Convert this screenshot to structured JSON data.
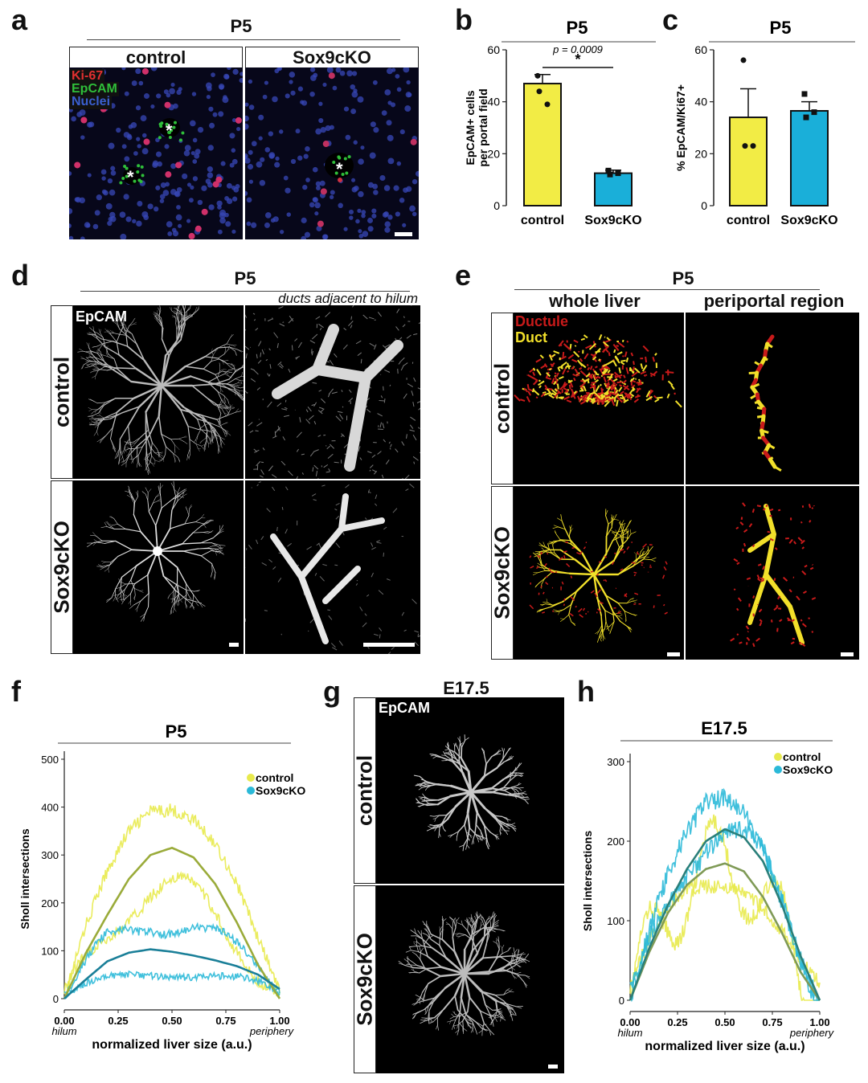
{
  "panels": {
    "a": {
      "label": "a",
      "title": "P5",
      "headers": [
        "control",
        "Sox9cKO"
      ],
      "channels": [
        "Ki-67",
        "EpCAM",
        "Nuclei"
      ],
      "marker": "*",
      "colors": {
        "ki67": "#e03030",
        "epcam": "#2fbf3a",
        "nuclei": "#3a5fd0"
      }
    },
    "b": {
      "label": "b",
      "title": "P5"
    },
    "c": {
      "label": "c",
      "title": "P5"
    },
    "d": {
      "label": "d",
      "title": "P5",
      "subtitle": "ducts adjacent to hilum",
      "channel": "EpCAM",
      "rows": [
        "control",
        "Sox9cKO"
      ]
    },
    "e": {
      "label": "e",
      "title": "P5",
      "cols": [
        "whole liver",
        "periportal region"
      ],
      "legend": [
        "Ductule",
        "Duct"
      ],
      "rows": [
        "control",
        "Sox9cKO"
      ],
      "colors": {
        "ductule": "#c81a1a",
        "duct": "#f2e02a"
      }
    },
    "f": {
      "label": "f",
      "title": "P5"
    },
    "g": {
      "label": "g",
      "title": "E17.5",
      "channel": "EpCAM",
      "rows": [
        "control",
        "Sox9cKO"
      ]
    },
    "h": {
      "label": "h",
      "title": "E17.5"
    }
  },
  "chart_data": [
    {
      "id": "b",
      "type": "bar",
      "title": "P5",
      "ylabel": "EpCAM+ cells per portal field",
      "categories": [
        "control",
        "Sox9cKO"
      ],
      "values": [
        47,
        12.5
      ],
      "errors": [
        3.5,
        1.2
      ],
      "points": [
        [
          50,
          44,
          39
        ],
        [
          13.5,
          12,
          12.5
        ]
      ],
      "ylim": [
        0,
        60
      ],
      "yticks": [
        0,
        20,
        40,
        60
      ],
      "annotation": {
        "p": "p = 0.0009",
        "sig": "*"
      },
      "colors": [
        "#f2ec45",
        "#1aafd9"
      ]
    },
    {
      "id": "c",
      "type": "bar",
      "title": "P5",
      "ylabel": "% EpCAM/Ki67+",
      "categories": [
        "control",
        "Sox9cKO"
      ],
      "values": [
        34,
        36.5
      ],
      "errors": [
        11,
        3.5
      ],
      "points": [
        [
          56,
          23,
          23
        ],
        [
          43,
          34,
          36
        ]
      ],
      "ylim": [
        0,
        60
      ],
      "yticks": [
        0,
        20,
        40,
        60
      ],
      "colors": [
        "#f2ec45",
        "#1aafd9"
      ]
    },
    {
      "id": "f",
      "type": "line",
      "title": "P5",
      "xlabel": "normalized liver size (a.u.)",
      "ylabel": "Sholl intersections",
      "xlim": [
        0,
        1
      ],
      "ylim": [
        0,
        500
      ],
      "xticks": [
        "0.00",
        "0.25",
        "0.50",
        "0.75",
        "1.00"
      ],
      "yticks": [
        0,
        100,
        200,
        300,
        400,
        500
      ],
      "x_endpoints": [
        "hilum",
        "periphery"
      ],
      "legend": [
        "control",
        "Sox9cKO"
      ],
      "series": [
        {
          "name": "control",
          "fit": {
            "x": [
              0,
              0.1,
              0.2,
              0.3,
              0.4,
              0.5,
              0.6,
              0.7,
              0.8,
              0.9,
              1.0
            ],
            "y": [
              0,
              95,
              175,
              250,
              300,
              315,
              295,
              240,
              160,
              70,
              0
            ]
          },
          "color": "#e8ea4d",
          "fitcolor": "#9aab3a"
        },
        {
          "name": "Sox9cKO",
          "fit": {
            "x": [
              0,
              0.1,
              0.2,
              0.3,
              0.4,
              0.5,
              0.6,
              0.7,
              0.8,
              0.9,
              1.0
            ],
            "y": [
              0,
              40,
              78,
              96,
              103,
              98,
              90,
              80,
              68,
              50,
              20
            ]
          },
          "color": "#2bb9d8",
          "fitcolor": "#1a7f98"
        }
      ]
    },
    {
      "id": "h",
      "type": "line",
      "title": "E17.5",
      "xlabel": "normalized liver size (a.u.)",
      "ylabel": "Sholl intersections",
      "xlim": [
        0,
        1
      ],
      "ylim": [
        0,
        300
      ],
      "xticks": [
        "0.00",
        "0.25",
        "0.50",
        "0.75",
        "1.00"
      ],
      "yticks": [
        0,
        100,
        200,
        300
      ],
      "x_endpoints": [
        "hilum",
        "periphery"
      ],
      "legend": [
        "control",
        "Sox9cKO"
      ],
      "series": [
        {
          "name": "control",
          "fit": {
            "x": [
              0,
              0.1,
              0.2,
              0.3,
              0.4,
              0.5,
              0.6,
              0.7,
              0.8,
              0.9,
              1.0
            ],
            "y": [
              0,
              60,
              110,
              145,
              165,
              172,
              162,
              130,
              85,
              35,
              0
            ]
          },
          "color": "#e8ea4d",
          "fitcolor": "#7f9a56"
        },
        {
          "name": "Sox9cKO",
          "fit": {
            "x": [
              0,
              0.1,
              0.2,
              0.3,
              0.4,
              0.5,
              0.6,
              0.7,
              0.8,
              0.9,
              1.0
            ],
            "y": [
              0,
              65,
              120,
              165,
              200,
              215,
              205,
              175,
              120,
              55,
              0
            ]
          },
          "color": "#2bb9d8",
          "fitcolor": "#2a7f7a"
        }
      ]
    }
  ]
}
